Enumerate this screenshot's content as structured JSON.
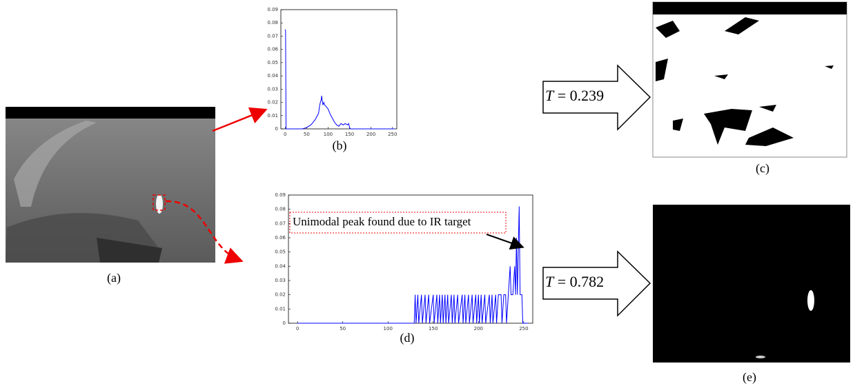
{
  "chart_data": [
    {
      "type": "line",
      "color": "#0000ff",
      "x": [
        0,
        1,
        2,
        3,
        40,
        50,
        60,
        65,
        70,
        75,
        78,
        80,
        82,
        84,
        85,
        86,
        88,
        90,
        92,
        95,
        100,
        105,
        110,
        115,
        120,
        125,
        130,
        135,
        140,
        145,
        148,
        150,
        152,
        255
      ],
      "values": [
        0.075,
        0.074,
        0,
        0,
        0,
        0.001,
        0.003,
        0.005,
        0.007,
        0.01,
        0.012,
        0.017,
        0.02,
        0.022,
        0.025,
        0.022,
        0.018,
        0.02,
        0.018,
        0.017,
        0.015,
        0.011,
        0.008,
        0.005,
        0.003,
        0.002,
        0.004,
        0.003,
        0.004,
        0.003,
        0.004,
        0.001,
        0,
        0
      ],
      "xlim": [
        -10,
        260
      ],
      "ylim": [
        0,
        0.09
      ],
      "xticks": [
        0,
        50,
        100,
        150,
        200,
        250
      ],
      "yticks": [
        0,
        0.01,
        0.02,
        0.03,
        0.04,
        0.05,
        0.06,
        0.07,
        0.08,
        0.09
      ]
    },
    {
      "type": "line",
      "color": "#0000ff",
      "x": [
        0,
        129,
        130,
        131,
        133,
        134,
        137,
        138,
        141,
        142,
        145,
        146,
        150,
        151,
        154,
        155,
        157,
        158,
        160,
        161,
        163,
        164,
        166,
        167,
        170,
        171,
        173,
        174,
        177,
        178,
        182,
        183,
        185,
        186,
        189,
        190,
        193,
        194,
        197,
        198,
        200,
        201,
        203,
        204,
        207,
        208,
        212,
        213,
        215,
        216,
        219,
        220,
        222,
        225,
        226,
        228,
        230,
        231,
        233,
        235,
        236,
        238,
        240,
        241,
        242,
        243,
        245,
        246,
        248,
        249,
        255
      ],
      "values": [
        0,
        0,
        0.02,
        0,
        0.02,
        0,
        0.02,
        0,
        0.02,
        0,
        0.02,
        0,
        0.02,
        0,
        0.02,
        0,
        0.02,
        0,
        0.02,
        0,
        0.02,
        0,
        0.02,
        0,
        0.02,
        0,
        0.02,
        0,
        0.02,
        0,
        0.02,
        0,
        0.02,
        0,
        0.02,
        0,
        0.02,
        0,
        0.02,
        0,
        0.02,
        0,
        0.02,
        0,
        0.02,
        0,
        0.02,
        0,
        0.02,
        0,
        0.02,
        0,
        0.02,
        0.02,
        0,
        0.02,
        0.02,
        0,
        0.02,
        0.04,
        0.02,
        0.02,
        0.04,
        0.02,
        0.06,
        0.02,
        0.082,
        0.02,
        0.02,
        0,
        0
      ],
      "xlim": [
        -10,
        260
      ],
      "ylim": [
        0,
        0.09
      ],
      "xticks": [
        0,
        50,
        100,
        150,
        200,
        250
      ],
      "yticks": [
        0,
        0.01,
        0.02,
        0.03,
        0.04,
        0.05,
        0.06,
        0.07,
        0.08,
        0.09
      ],
      "annotation": "Unimodal peak found due to IR target"
    }
  ],
  "panel_labels": [
    "(a)",
    "(b)",
    "(c)",
    "(d)",
    "(e)"
  ],
  "thresholds": [
    {
      "symbol": "T",
      "text": "= 0.239"
    },
    {
      "symbol": "T",
      "text": "= 0.782"
    }
  ]
}
